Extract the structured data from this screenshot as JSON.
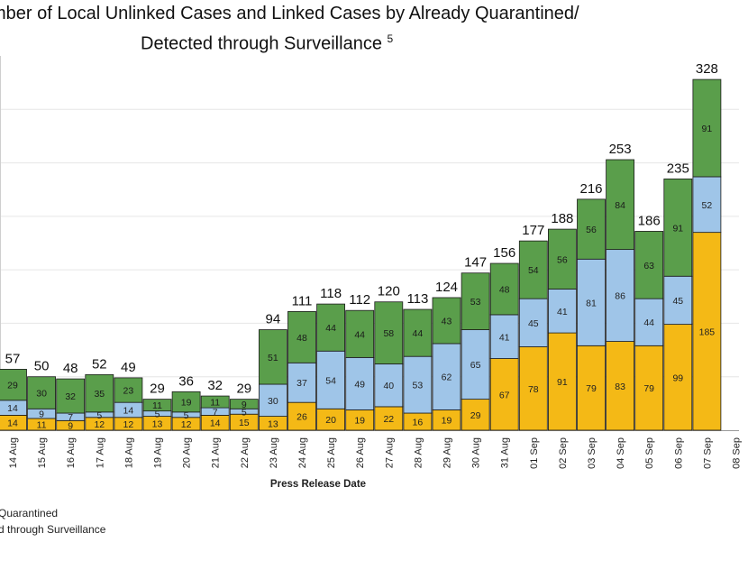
{
  "title": {
    "line1": "mber of Local Unlinked Cases and Linked Cases by Already Quarantined/",
    "line2": "Detected through Surveillance",
    "footnote": "5"
  },
  "legend": {
    "items": [
      {
        "label": "Quarantined",
        "color": "#f4b916"
      },
      {
        "label": "d through Surveillance",
        "color": "#9fc5e8"
      }
    ]
  },
  "colors": {
    "quarantined": "#f4b916",
    "surveillance": "#9fc5e8",
    "unlinked": "#5a9e4b",
    "grid": "#e6e6e6",
    "bar_stroke": "#1a1a1a"
  },
  "chart_data": {
    "type": "bar",
    "stacked": true,
    "xlabel": "Press Release Date",
    "ylabel": "",
    "ylim": [
      0,
      350
    ],
    "grid": true,
    "categories": [
      "14 Aug",
      "15 Aug",
      "16 Aug",
      "17 Aug",
      "18 Aug",
      "19 Aug",
      "20 Aug",
      "21 Aug",
      "22 Aug",
      "23 Aug",
      "24 Aug",
      "25 Aug",
      "26 Aug",
      "27 Aug",
      "28 Aug",
      "29 Aug",
      "30 Aug",
      "31 Aug",
      "01 Sep",
      "02 Sep",
      "03 Sep",
      "04 Sep",
      "05 Sep",
      "06 Sep",
      "07 Sep",
      "08 Sep"
    ],
    "series": [
      {
        "name": "Quarantined",
        "values": [
          14,
          11,
          9,
          12,
          12,
          13,
          12,
          14,
          15,
          13,
          26,
          20,
          19,
          22,
          16,
          19,
          29,
          67,
          78,
          91,
          79,
          83,
          79,
          99,
          185,
          null
        ]
      },
      {
        "name": "d through Surveillance",
        "values": [
          14,
          9,
          7,
          5,
          14,
          5,
          5,
          7,
          5,
          30,
          37,
          54,
          49,
          40,
          53,
          62,
          65,
          41,
          45,
          41,
          81,
          86,
          44,
          45,
          52,
          null
        ]
      },
      {
        "name": "",
        "values": [
          29,
          30,
          32,
          35,
          23,
          11,
          19,
          11,
          9,
          51,
          48,
          44,
          44,
          58,
          44,
          43,
          53,
          48,
          54,
          56,
          56,
          84,
          63,
          91,
          91,
          null
        ]
      }
    ],
    "totals": [
      57,
      50,
      48,
      52,
      49,
      29,
      36,
      32,
      29,
      94,
      111,
      118,
      112,
      120,
      113,
      124,
      147,
      156,
      177,
      188,
      216,
      253,
      186,
      235,
      328,
      null
    ]
  }
}
